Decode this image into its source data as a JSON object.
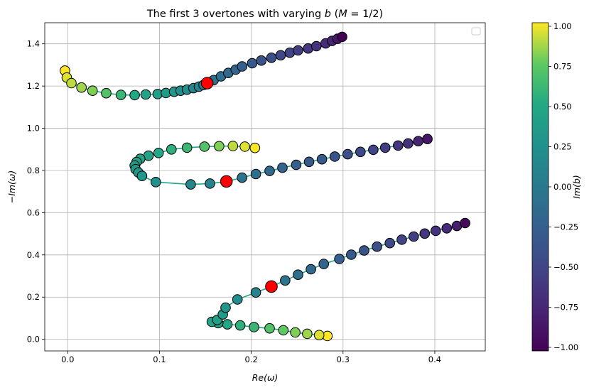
{
  "chart_data": {
    "type": "scatter",
    "title": "The first 3 overtones with varying b (M = 1/2)",
    "title_parts": {
      "prefix": "The first 3 overtones with varying ",
      "b": "b",
      "open": " (",
      "m": "M",
      "eq": " = 1/2)"
    },
    "xlabel": "Re(ω)",
    "ylabel": "−Im(ω)",
    "colorbar_label": "Im(b)",
    "xlim": [
      -0.025,
      0.455
    ],
    "ylim": [
      -0.055,
      1.5
    ],
    "x_ticks": [
      0.0,
      0.1,
      0.2,
      0.3,
      0.4
    ],
    "x_tick_labels": [
      "0.0",
      "0.1",
      "0.2",
      "0.3",
      "0.4"
    ],
    "y_ticks": [
      0.0,
      0.2,
      0.4,
      0.6,
      0.8,
      1.0,
      1.2,
      1.4
    ],
    "y_tick_labels": [
      "0.0",
      "0.2",
      "0.4",
      "0.6",
      "0.8",
      "1.0",
      "1.2",
      "1.4"
    ],
    "colorbar_ticks": [
      1.0,
      0.75,
      0.5,
      0.25,
      0.0,
      -0.25,
      -0.5,
      -0.75,
      -1.0
    ],
    "colorbar_tick_labels": [
      "1.00",
      "0.75",
      "0.50",
      "0.25",
      "0.00",
      "−0.25",
      "−0.50",
      "−0.75",
      "−1.00"
    ],
    "colorbar_range": [
      -1.0,
      1.0
    ],
    "colormap": "viridis",
    "grid": true,
    "legend": "empty box, top-right",
    "line_color": "#21a585",
    "highlight_color": "#ff0000",
    "series": [
      {
        "points": [
          [
            -0.003,
            1.273,
            1.0
          ],
          [
            -0.001,
            1.24,
            0.95
          ],
          [
            0.004,
            1.214,
            0.9
          ],
          [
            0.015,
            1.193,
            0.85
          ],
          [
            0.027,
            1.178,
            0.8
          ],
          [
            0.042,
            1.166,
            0.7
          ],
          [
            0.058,
            1.158,
            0.6
          ],
          [
            0.073,
            1.157,
            0.5
          ],
          [
            0.085,
            1.16,
            0.45
          ],
          [
            0.098,
            1.162,
            0.4
          ],
          [
            0.107,
            1.167,
            0.35
          ],
          [
            0.116,
            1.173,
            0.3
          ],
          [
            0.123,
            1.178,
            0.25
          ],
          [
            0.13,
            1.183,
            0.2
          ],
          [
            0.137,
            1.19,
            0.15
          ],
          [
            0.143,
            1.197,
            0.1
          ],
          [
            0.148,
            1.205,
            0.05
          ],
          [
            0.152,
            1.214,
            0.0
          ],
          [
            0.159,
            1.228,
            -0.05
          ],
          [
            0.167,
            1.246,
            -0.1
          ],
          [
            0.175,
            1.262,
            -0.15
          ],
          [
            0.183,
            1.278,
            -0.2
          ],
          [
            0.19,
            1.293,
            -0.25
          ],
          [
            0.201,
            1.308,
            -0.3
          ],
          [
            0.211,
            1.321,
            -0.35
          ],
          [
            0.222,
            1.334,
            -0.4
          ],
          [
            0.232,
            1.346,
            -0.45
          ],
          [
            0.242,
            1.358,
            -0.5
          ],
          [
            0.251,
            1.369,
            -0.55
          ],
          [
            0.262,
            1.378,
            -0.6
          ],
          [
            0.271,
            1.389,
            -0.65
          ],
          [
            0.281,
            1.402,
            -0.7
          ],
          [
            0.288,
            1.414,
            -0.75
          ],
          [
            0.294,
            1.424,
            -0.85
          ],
          [
            0.299,
            1.433,
            -1.0
          ]
        ],
        "highlight": [
          0.152,
          1.214
        ]
      },
      {
        "points": [
          [
            0.204,
            0.907,
            1.0
          ],
          [
            0.193,
            0.913,
            0.95
          ],
          [
            0.18,
            0.916,
            0.9
          ],
          [
            0.165,
            0.915,
            0.8
          ],
          [
            0.149,
            0.913,
            0.7
          ],
          [
            0.13,
            0.908,
            0.6
          ],
          [
            0.113,
            0.9,
            0.55
          ],
          [
            0.099,
            0.883,
            0.5
          ],
          [
            0.088,
            0.87,
            0.45
          ],
          [
            0.079,
            0.855,
            0.45
          ],
          [
            0.075,
            0.84,
            0.4
          ],
          [
            0.073,
            0.823,
            0.35
          ],
          [
            0.074,
            0.806,
            0.35
          ],
          [
            0.077,
            0.79,
            0.3
          ],
          [
            0.081,
            0.774,
            0.3
          ],
          [
            0.096,
            0.745,
            0.25
          ],
          [
            0.134,
            0.734,
            0.15
          ],
          [
            0.155,
            0.738,
            0.1
          ],
          [
            0.173,
            0.748,
            0.0
          ],
          [
            0.19,
            0.766,
            -0.05
          ],
          [
            0.205,
            0.783,
            -0.1
          ],
          [
            0.22,
            0.798,
            -0.15
          ],
          [
            0.234,
            0.813,
            -0.2
          ],
          [
            0.249,
            0.827,
            -0.25
          ],
          [
            0.263,
            0.841,
            -0.3
          ],
          [
            0.277,
            0.853,
            -0.3
          ],
          [
            0.291,
            0.866,
            -0.35
          ],
          [
            0.305,
            0.877,
            -0.4
          ],
          [
            0.319,
            0.888,
            -0.45
          ],
          [
            0.333,
            0.898,
            -0.5
          ],
          [
            0.346,
            0.908,
            -0.55
          ],
          [
            0.36,
            0.918,
            -0.6
          ],
          [
            0.371,
            0.928,
            -0.65
          ],
          [
            0.382,
            0.939,
            -0.75
          ],
          [
            0.392,
            0.949,
            -0.85
          ]
        ],
        "highlight": [
          0.173,
          0.748
        ]
      },
      {
        "points": [
          [
            0.283,
            0.016,
            1.0
          ],
          [
            0.274,
            0.02,
            0.95
          ],
          [
            0.261,
            0.026,
            0.85
          ],
          [
            0.248,
            0.033,
            0.8
          ],
          [
            0.235,
            0.043,
            0.75
          ],
          [
            0.22,
            0.052,
            0.7
          ],
          [
            0.203,
            0.058,
            0.6
          ],
          [
            0.188,
            0.066,
            0.55
          ],
          [
            0.174,
            0.071,
            0.5
          ],
          [
            0.164,
            0.077,
            0.45
          ],
          [
            0.157,
            0.083,
            0.45
          ],
          [
            0.163,
            0.092,
            0.4
          ],
          [
            0.169,
            0.118,
            0.35
          ],
          [
            0.172,
            0.15,
            0.3
          ],
          [
            0.185,
            0.189,
            0.2
          ],
          [
            0.205,
            0.222,
            0.1
          ],
          [
            0.222,
            0.25,
            0.0
          ],
          [
            0.237,
            0.279,
            -0.05
          ],
          [
            0.251,
            0.306,
            -0.1
          ],
          [
            0.265,
            0.332,
            -0.15
          ],
          [
            0.279,
            0.357,
            -0.2
          ],
          [
            0.296,
            0.381,
            -0.25
          ],
          [
            0.309,
            0.401,
            -0.3
          ],
          [
            0.323,
            0.421,
            -0.35
          ],
          [
            0.337,
            0.439,
            -0.4
          ],
          [
            0.351,
            0.456,
            -0.45
          ],
          [
            0.364,
            0.472,
            -0.5
          ],
          [
            0.377,
            0.487,
            -0.55
          ],
          [
            0.389,
            0.501,
            -0.6
          ],
          [
            0.401,
            0.514,
            -0.65
          ],
          [
            0.413,
            0.526,
            -0.7
          ],
          [
            0.424,
            0.537,
            -0.8
          ],
          [
            0.433,
            0.551,
            -0.95
          ]
        ],
        "highlight": [
          0.222,
          0.25
        ]
      }
    ]
  }
}
